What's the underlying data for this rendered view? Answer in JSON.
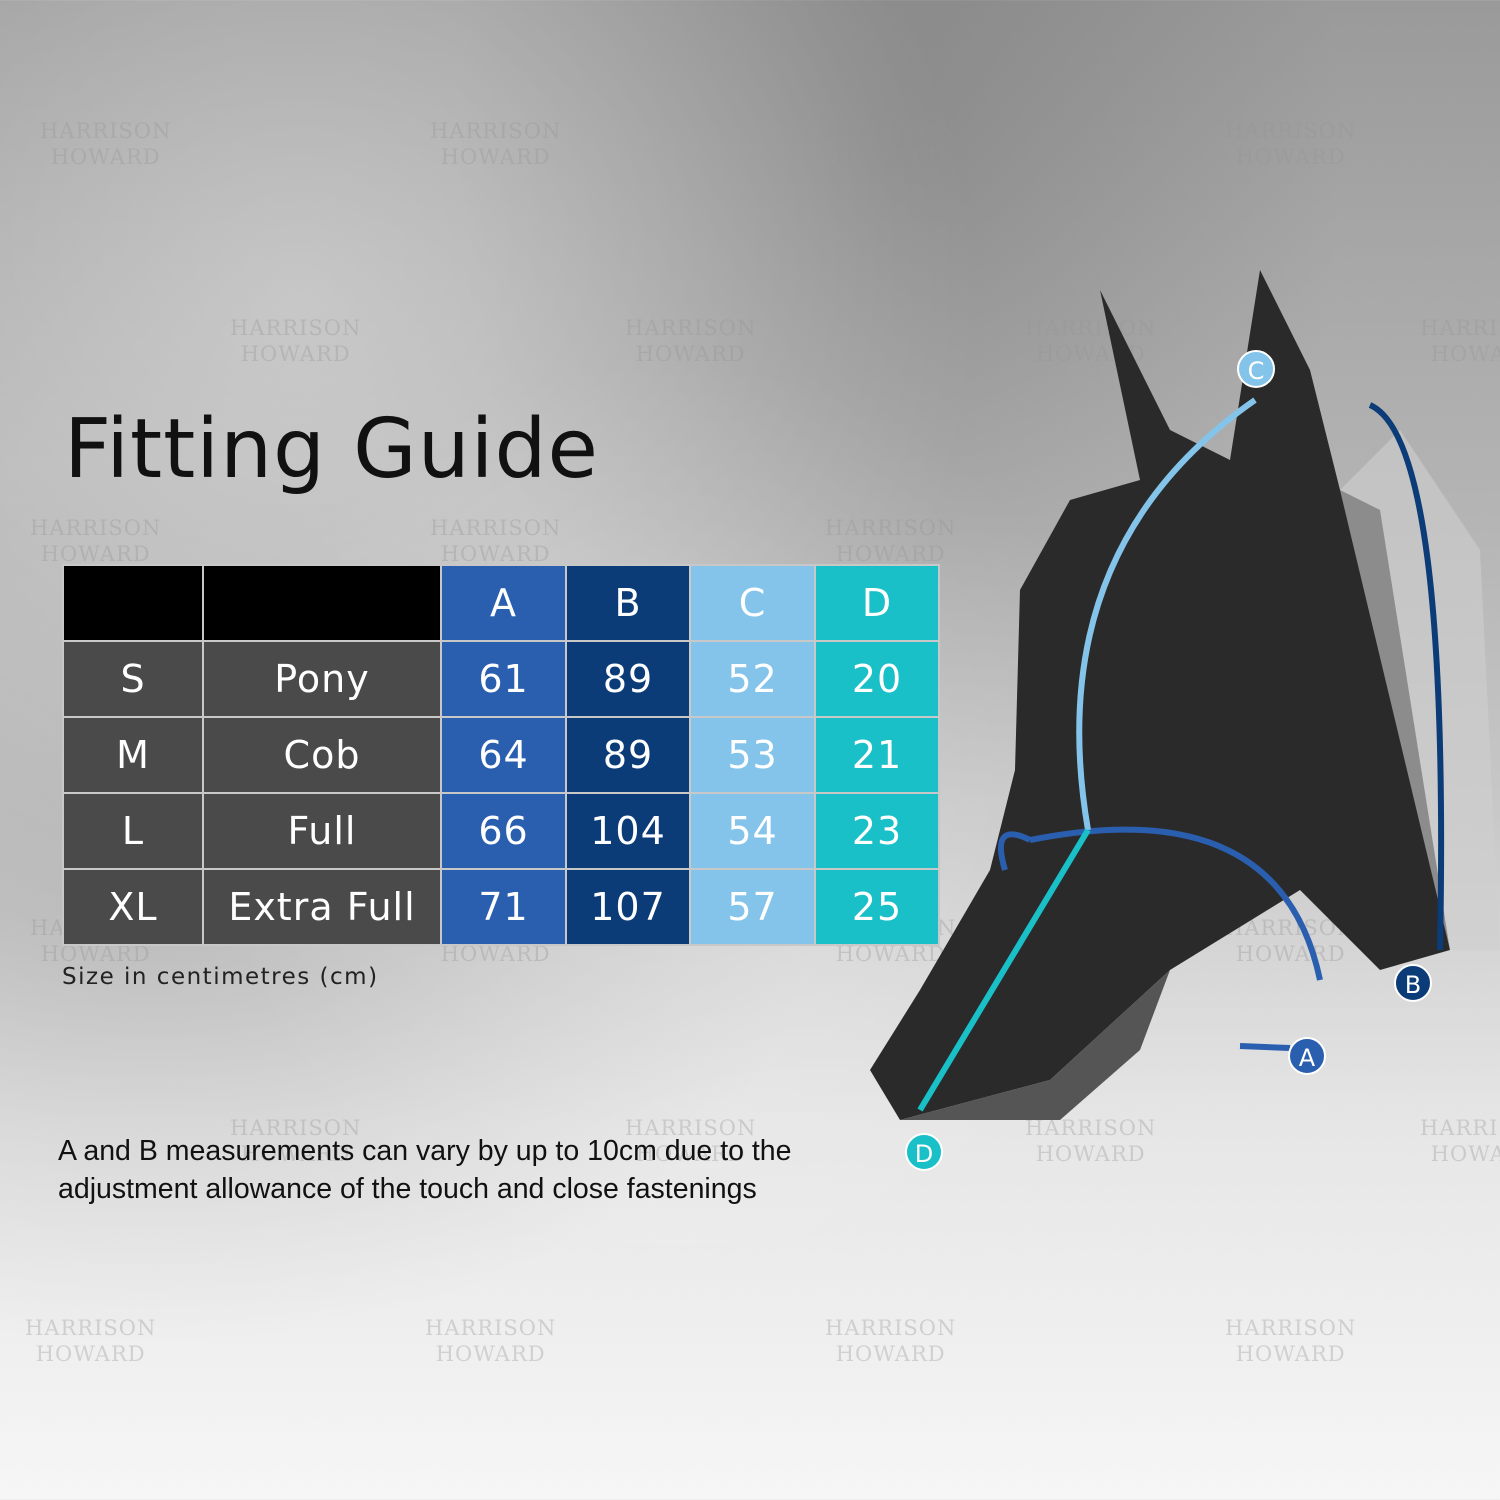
{
  "title": "Fitting Guide",
  "watermark": {
    "line1": "HARRISON",
    "line2": "HOWARD"
  },
  "table": {
    "columns": [
      "",
      "",
      "A",
      "B",
      "C",
      "D"
    ],
    "column_colors": {
      "A": "#2a5fb0",
      "B": "#0b3c78",
      "C": "#84c4ea",
      "D": "#19c0c8"
    },
    "rows": [
      {
        "size": "S",
        "type": "Pony",
        "A": "61",
        "B": "89",
        "C": "52",
        "D": "20"
      },
      {
        "size": "M",
        "type": "Cob",
        "A": "64",
        "B": "89",
        "C": "53",
        "D": "21"
      },
      {
        "size": "L",
        "type": "Full",
        "A": "66",
        "B": "104",
        "C": "54",
        "D": "23"
      },
      {
        "size": "XL",
        "type": "Extra Full",
        "A": "71",
        "B": "107",
        "C": "57",
        "D": "25"
      }
    ]
  },
  "unit_note": "Size in centimetres (cm)",
  "note": "A and B measurements can vary by up to 10cm due to the adjustment allowance of the touch and close fastenings",
  "diagram": {
    "labels": [
      "A",
      "B",
      "C",
      "D"
    ]
  }
}
